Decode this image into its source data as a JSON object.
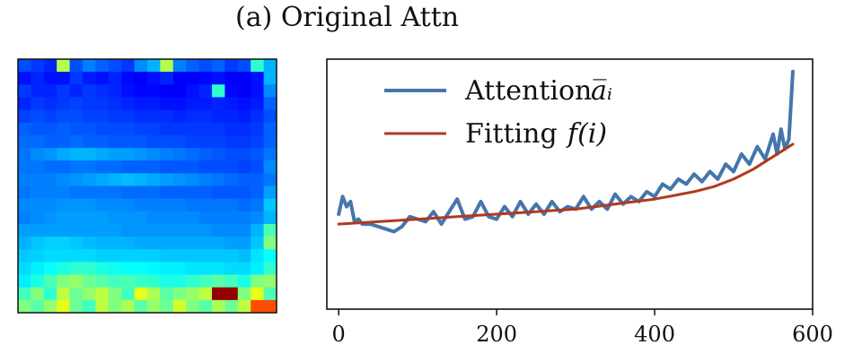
{
  "figure": {
    "title": "(a) Original Attn"
  },
  "heatmap": {
    "colormap": "jet",
    "rows": 20,
    "cols": 20,
    "values": [
      [
        0.2,
        0.18,
        0.16,
        0.55,
        0.2,
        0.25,
        0.22,
        0.2,
        0.18,
        0.26,
        0.3,
        0.55,
        0.25,
        0.22,
        0.2,
        0.22,
        0.18,
        0.2,
        0.42,
        0.3
      ],
      [
        0.14,
        0.16,
        0.14,
        0.14,
        0.18,
        0.15,
        0.14,
        0.16,
        0.13,
        0.12,
        0.14,
        0.16,
        0.12,
        0.12,
        0.13,
        0.14,
        0.12,
        0.12,
        0.14,
        0.3
      ],
      [
        0.18,
        0.16,
        0.16,
        0.18,
        0.16,
        0.18,
        0.17,
        0.16,
        0.14,
        0.13,
        0.13,
        0.12,
        0.12,
        0.14,
        0.16,
        0.42,
        0.13,
        0.12,
        0.14,
        0.26
      ],
      [
        0.16,
        0.18,
        0.17,
        0.18,
        0.19,
        0.18,
        0.18,
        0.17,
        0.16,
        0.15,
        0.15,
        0.14,
        0.14,
        0.15,
        0.15,
        0.16,
        0.15,
        0.14,
        0.15,
        0.22
      ],
      [
        0.19,
        0.2,
        0.19,
        0.2,
        0.2,
        0.19,
        0.19,
        0.18,
        0.18,
        0.17,
        0.17,
        0.17,
        0.16,
        0.17,
        0.17,
        0.16,
        0.16,
        0.15,
        0.17,
        0.2
      ],
      [
        0.22,
        0.21,
        0.21,
        0.22,
        0.21,
        0.21,
        0.2,
        0.2,
        0.2,
        0.19,
        0.19,
        0.18,
        0.18,
        0.18,
        0.18,
        0.18,
        0.17,
        0.17,
        0.18,
        0.22
      ],
      [
        0.23,
        0.23,
        0.22,
        0.22,
        0.23,
        0.22,
        0.22,
        0.21,
        0.21,
        0.21,
        0.2,
        0.2,
        0.2,
        0.19,
        0.19,
        0.19,
        0.18,
        0.18,
        0.19,
        0.22
      ],
      [
        0.24,
        0.26,
        0.27,
        0.29,
        0.3,
        0.3,
        0.29,
        0.28,
        0.28,
        0.27,
        0.26,
        0.25,
        0.24,
        0.23,
        0.22,
        0.21,
        0.2,
        0.2,
        0.21,
        0.24
      ],
      [
        0.24,
        0.24,
        0.23,
        0.23,
        0.24,
        0.24,
        0.23,
        0.23,
        0.22,
        0.22,
        0.22,
        0.21,
        0.21,
        0.21,
        0.2,
        0.2,
        0.2,
        0.19,
        0.2,
        0.26
      ],
      [
        0.25,
        0.25,
        0.25,
        0.26,
        0.27,
        0.28,
        0.29,
        0.3,
        0.31,
        0.3,
        0.29,
        0.28,
        0.27,
        0.26,
        0.25,
        0.24,
        0.23,
        0.22,
        0.22,
        0.24
      ],
      [
        0.24,
        0.25,
        0.25,
        0.25,
        0.24,
        0.24,
        0.24,
        0.24,
        0.23,
        0.23,
        0.23,
        0.22,
        0.22,
        0.22,
        0.22,
        0.21,
        0.21,
        0.21,
        0.22,
        0.28
      ],
      [
        0.26,
        0.26,
        0.26,
        0.27,
        0.27,
        0.27,
        0.26,
        0.26,
        0.26,
        0.25,
        0.25,
        0.25,
        0.25,
        0.24,
        0.24,
        0.24,
        0.24,
        0.23,
        0.24,
        0.32
      ],
      [
        0.25,
        0.26,
        0.27,
        0.28,
        0.28,
        0.28,
        0.28,
        0.27,
        0.27,
        0.27,
        0.26,
        0.26,
        0.26,
        0.26,
        0.25,
        0.25,
        0.25,
        0.25,
        0.26,
        0.3
      ],
      [
        0.28,
        0.28,
        0.28,
        0.28,
        0.28,
        0.28,
        0.28,
        0.28,
        0.27,
        0.27,
        0.27,
        0.27,
        0.27,
        0.27,
        0.27,
        0.26,
        0.26,
        0.26,
        0.3,
        0.45
      ],
      [
        0.3,
        0.32,
        0.33,
        0.33,
        0.32,
        0.31,
        0.3,
        0.3,
        0.3,
        0.29,
        0.29,
        0.29,
        0.29,
        0.29,
        0.29,
        0.29,
        0.28,
        0.28,
        0.32,
        0.5
      ],
      [
        0.32,
        0.33,
        0.34,
        0.34,
        0.34,
        0.34,
        0.33,
        0.33,
        0.33,
        0.33,
        0.33,
        0.32,
        0.32,
        0.32,
        0.32,
        0.32,
        0.32,
        0.31,
        0.35,
        0.38
      ],
      [
        0.34,
        0.36,
        0.38,
        0.4,
        0.42,
        0.42,
        0.4,
        0.39,
        0.38,
        0.38,
        0.37,
        0.36,
        0.36,
        0.35,
        0.35,
        0.35,
        0.34,
        0.34,
        0.36,
        0.42
      ],
      [
        0.36,
        0.4,
        0.45,
        0.5,
        0.52,
        0.48,
        0.46,
        0.44,
        0.45,
        0.43,
        0.42,
        0.4,
        0.4,
        0.42,
        0.44,
        0.46,
        0.44,
        0.4,
        0.5,
        0.52
      ],
      [
        0.44,
        0.5,
        0.42,
        0.56,
        0.48,
        0.52,
        0.56,
        0.5,
        0.44,
        0.6,
        0.54,
        0.46,
        0.5,
        0.52,
        0.56,
        0.98,
        0.98,
        0.5,
        0.6,
        0.45
      ],
      [
        0.5,
        0.46,
        0.52,
        0.6,
        0.48,
        0.44,
        0.56,
        0.5,
        0.54,
        0.46,
        0.52,
        0.48,
        0.58,
        0.5,
        0.46,
        0.54,
        0.48,
        0.56,
        0.8,
        0.8
      ]
    ]
  },
  "chart_data": {
    "type": "line",
    "title": "",
    "xlabel": "",
    "ylabel": "",
    "xlim": [
      -15,
      600
    ],
    "ylim": [
      0,
      1
    ],
    "xticks": [
      0,
      200,
      400,
      600
    ],
    "legend": "top-left",
    "series": [
      {
        "name": "Attention",
        "legend_label": "Attention",
        "legend_math": "a̅ᵢ",
        "color": "#4575ac",
        "x": [
          0,
          5,
          10,
          15,
          20,
          25,
          30,
          40,
          50,
          60,
          70,
          80,
          90,
          100,
          110,
          120,
          130,
          140,
          150,
          160,
          170,
          180,
          190,
          200,
          210,
          220,
          230,
          240,
          250,
          260,
          270,
          280,
          290,
          300,
          310,
          320,
          330,
          340,
          350,
          360,
          370,
          380,
          390,
          400,
          410,
          420,
          430,
          440,
          450,
          460,
          470,
          480,
          490,
          500,
          510,
          520,
          530,
          540,
          550,
          555,
          560,
          565,
          570,
          575
        ],
        "y": [
          0.38,
          0.45,
          0.41,
          0.43,
          0.35,
          0.36,
          0.34,
          0.34,
          0.33,
          0.32,
          0.31,
          0.33,
          0.37,
          0.36,
          0.35,
          0.39,
          0.34,
          0.39,
          0.44,
          0.36,
          0.37,
          0.43,
          0.37,
          0.36,
          0.41,
          0.37,
          0.43,
          0.38,
          0.42,
          0.38,
          0.43,
          0.39,
          0.41,
          0.4,
          0.45,
          0.4,
          0.43,
          0.4,
          0.46,
          0.42,
          0.45,
          0.43,
          0.47,
          0.45,
          0.5,
          0.48,
          0.52,
          0.5,
          0.54,
          0.51,
          0.55,
          0.52,
          0.58,
          0.55,
          0.62,
          0.58,
          0.65,
          0.6,
          0.7,
          0.62,
          0.72,
          0.64,
          0.68,
          0.95
        ]
      },
      {
        "name": "Fitting",
        "legend_label": "Fitting",
        "legend_math": "f(i)",
        "color": "#b03a1e",
        "x": [
          0,
          25,
          50,
          75,
          100,
          125,
          150,
          175,
          200,
          225,
          250,
          275,
          300,
          325,
          350,
          375,
          400,
          425,
          450,
          475,
          500,
          525,
          550,
          575
        ],
        "y": [
          0.34,
          0.345,
          0.35,
          0.355,
          0.36,
          0.365,
          0.37,
          0.375,
          0.38,
          0.385,
          0.39,
          0.395,
          0.4,
          0.41,
          0.42,
          0.43,
          0.44,
          0.455,
          0.47,
          0.49,
          0.52,
          0.56,
          0.61,
          0.66
        ]
      }
    ]
  }
}
